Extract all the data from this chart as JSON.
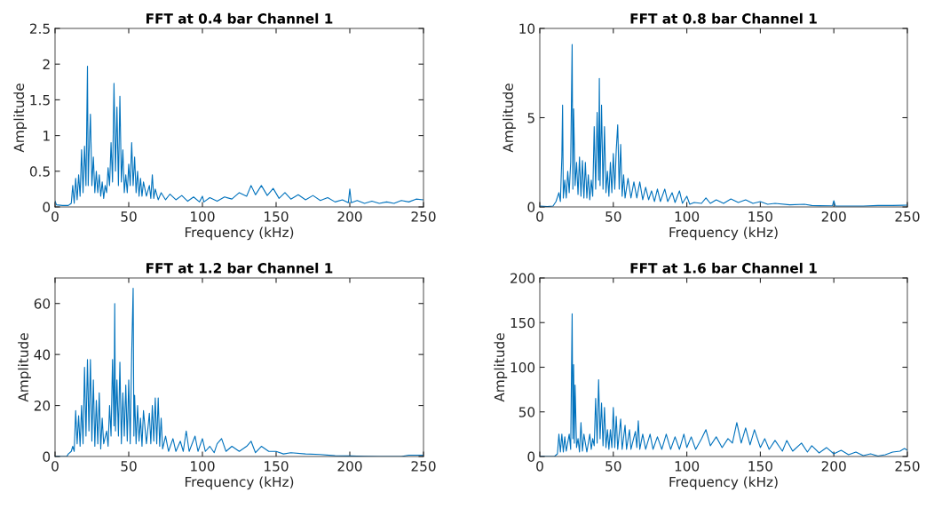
{
  "chart_data": [
    {
      "type": "line",
      "title": "FFT at 0.4 bar Channel 1",
      "xlabel": "Frequency (kHz)",
      "ylabel": "Amplitude",
      "xlim": [
        0,
        250
      ],
      "xticks": [
        0,
        50,
        100,
        150,
        200,
        250
      ],
      "ylim": [
        0,
        2.5
      ],
      "yticks": [
        0,
        0.5,
        1,
        1.5,
        2,
        2.5
      ],
      "x": [
        0,
        1,
        5,
        9,
        11,
        12,
        13,
        14,
        15,
        16,
        17,
        18,
        19,
        20,
        21,
        22,
        22.5,
        23,
        24,
        25,
        26,
        27,
        28,
        29,
        30,
        31,
        32,
        33,
        34,
        35,
        36,
        37,
        38,
        39,
        40,
        41,
        42,
        43,
        44,
        45,
        46,
        47,
        48,
        49,
        50,
        51,
        52,
        53,
        54,
        55,
        56,
        57,
        58,
        59,
        60,
        62,
        64,
        65,
        66,
        67,
        68,
        70,
        72,
        75,
        78,
        82,
        86,
        90,
        94,
        98,
        100,
        101,
        105,
        110,
        115,
        120,
        125,
        130,
        133,
        136,
        140,
        144,
        148,
        152,
        156,
        160,
        165,
        170,
        175,
        180,
        185,
        190,
        195,
        199,
        200,
        201,
        205,
        210,
        215,
        220,
        225,
        230,
        235,
        240,
        245,
        250
      ],
      "series": [
        {
          "color": "#0072bd",
          "values": [
            0.08,
            0.03,
            0.02,
            0.02,
            0.05,
            0.3,
            0.05,
            0.4,
            0.1,
            0.45,
            0.15,
            0.8,
            0.2,
            0.85,
            0.3,
            1.97,
            0.3,
            0.7,
            1.3,
            0.3,
            0.7,
            0.2,
            0.5,
            0.2,
            0.45,
            0.15,
            0.35,
            0.12,
            0.3,
            0.2,
            0.55,
            0.3,
            0.9,
            0.35,
            1.73,
            0.5,
            1.4,
            0.3,
            1.55,
            0.35,
            0.8,
            0.2,
            0.45,
            0.2,
            0.6,
            0.3,
            0.9,
            0.3,
            0.7,
            0.2,
            0.5,
            0.15,
            0.4,
            0.15,
            0.35,
            0.15,
            0.3,
            0.12,
            0.45,
            0.12,
            0.25,
            0.1,
            0.2,
            0.1,
            0.18,
            0.1,
            0.16,
            0.08,
            0.14,
            0.07,
            0.15,
            0.07,
            0.13,
            0.08,
            0.14,
            0.11,
            0.2,
            0.15,
            0.3,
            0.17,
            0.3,
            0.16,
            0.26,
            0.12,
            0.2,
            0.11,
            0.17,
            0.1,
            0.16,
            0.09,
            0.13,
            0.07,
            0.1,
            0.06,
            0.25,
            0.06,
            0.09,
            0.05,
            0.08,
            0.05,
            0.07,
            0.05,
            0.09,
            0.07,
            0.11,
            0.1
          ]
        }
      ]
    },
    {
      "type": "line",
      "title": "FFT at 0.8 bar Channel 1",
      "xlabel": "Frequency (kHz)",
      "ylabel": "Amplitude",
      "xlim": [
        0,
        250
      ],
      "xticks": [
        0,
        50,
        100,
        150,
        200,
        250
      ],
      "ylim": [
        0,
        10
      ],
      "yticks": [
        0,
        5,
        10
      ],
      "x": [
        0,
        5,
        9,
        11,
        13,
        14,
        15,
        15.5,
        16,
        17,
        18,
        19,
        20,
        21,
        22,
        22.5,
        23,
        24,
        25,
        26,
        27,
        28,
        29,
        30,
        31,
        32,
        33,
        34,
        35,
        36,
        37,
        38,
        39,
        40,
        40.5,
        41,
        42,
        43,
        44,
        45,
        46,
        47,
        48,
        49,
        50,
        51,
        52,
        53,
        54,
        55,
        56,
        57,
        58,
        60,
        62,
        64,
        66,
        68,
        70,
        72,
        74,
        76,
        78,
        80,
        82,
        85,
        87,
        90,
        92,
        95,
        97,
        100,
        102,
        105,
        110,
        113,
        116,
        120,
        125,
        130,
        135,
        140,
        145,
        150,
        155,
        160,
        170,
        180,
        185,
        190,
        199,
        200,
        201,
        210,
        220,
        230,
        240,
        250
      ],
      "series": [
        {
          "color": "#0072bd",
          "values": [
            0.05,
            0.02,
            0.05,
            0.3,
            0.8,
            0.3,
            2.8,
            5.7,
            0.5,
            1.5,
            0.5,
            2.0,
            0.8,
            2.5,
            9.1,
            1.0,
            5.5,
            1.2,
            2.5,
            0.7,
            2.8,
            0.6,
            2.6,
            0.5,
            2.5,
            0.5,
            1.8,
            0.4,
            1.5,
            0.6,
            4.5,
            1.0,
            5.3,
            1.5,
            7.2,
            1.2,
            5.7,
            1.0,
            4.5,
            0.8,
            2.0,
            0.6,
            2.5,
            0.8,
            3.0,
            1.0,
            3.2,
            4.6,
            1.0,
            3.5,
            0.6,
            1.8,
            0.5,
            1.6,
            0.5,
            1.4,
            0.5,
            1.4,
            0.4,
            1.1,
            0.4,
            0.9,
            0.3,
            1.0,
            0.3,
            1.0,
            0.3,
            0.8,
            0.25,
            0.9,
            0.2,
            0.6,
            0.15,
            0.25,
            0.2,
            0.5,
            0.2,
            0.4,
            0.2,
            0.45,
            0.25,
            0.4,
            0.2,
            0.3,
            0.15,
            0.2,
            0.12,
            0.15,
            0.08,
            0.07,
            0.06,
            0.35,
            0.05,
            0.05,
            0.05,
            0.08,
            0.08,
            0.1
          ]
        }
      ]
    },
    {
      "type": "line",
      "title": "FFT at 1.2 bar Channel 1",
      "xlabel": "Frequency (kHz)",
      "ylabel": "Amplitude",
      "xlim": [
        0,
        250
      ],
      "xticks": [
        0,
        50,
        100,
        150,
        200,
        250
      ],
      "ylim": [
        0,
        70
      ],
      "yticks": [
        0,
        20,
        40,
        60
      ],
      "x": [
        0,
        8,
        9,
        11,
        12,
        13,
        14,
        15,
        16,
        17,
        18,
        19,
        20,
        21,
        22,
        23,
        24,
        25,
        26,
        27,
        28,
        29,
        30,
        31,
        32,
        33,
        35,
        36,
        37,
        38,
        39,
        40,
        40.5,
        41,
        42,
        43,
        44,
        45,
        46,
        47,
        48,
        49,
        50,
        51,
        52,
        53,
        53.5,
        54,
        55,
        56,
        57,
        58,
        59,
        60,
        62,
        64,
        65,
        66,
        67,
        68,
        69,
        70,
        71,
        72,
        73,
        75,
        77,
        80,
        82,
        85,
        87,
        89,
        91,
        95,
        97,
        100,
        102,
        105,
        108,
        110,
        113,
        116,
        120,
        125,
        130,
        133,
        136,
        140,
        145,
        150,
        155,
        160,
        170,
        180,
        190,
        200,
        210,
        220,
        235,
        240,
        250
      ],
      "series": [
        {
          "color": "#0072bd",
          "values": [
            0,
            0,
            1,
            2,
            4,
            2,
            18,
            5,
            16,
            4,
            20,
            5,
            35,
            8,
            38,
            10,
            38,
            6,
            30,
            4,
            22,
            5,
            25,
            3,
            15,
            5,
            10,
            4,
            20,
            8,
            38,
            12,
            60,
            10,
            30,
            8,
            37,
            5,
            25,
            8,
            28,
            6,
            30,
            5,
            40,
            66,
            8,
            24,
            5,
            20,
            6,
            15,
            4,
            18,
            5,
            17,
            5,
            20,
            6,
            23,
            5,
            23,
            4,
            15,
            3,
            8,
            2,
            7,
            2,
            6,
            2,
            10,
            2,
            8,
            2,
            7,
            2,
            4,
            1.5,
            5,
            7,
            2,
            4,
            2,
            4,
            6,
            1.5,
            4,
            2,
            2,
            1,
            1.5,
            1,
            0.8,
            0.3,
            0.2,
            0.1,
            0,
            0,
            0.5,
            0.5
          ]
        }
      ]
    },
    {
      "type": "line",
      "title": "FFT at 1.6 bar Channel 1",
      "xlabel": "Frequency (kHz)",
      "ylabel": "Amplitude",
      "xlim": [
        0,
        250
      ],
      "xticks": [
        0,
        50,
        100,
        150,
        200,
        250
      ],
      "ylim": [
        0,
        200
      ],
      "yticks": [
        0,
        50,
        100,
        150,
        200
      ],
      "x": [
        0,
        10,
        12,
        13,
        14,
        15,
        16,
        17,
        18,
        20,
        21,
        22,
        22.5,
        23,
        23.5,
        24,
        25,
        26,
        27,
        28,
        29,
        30,
        32,
        34,
        35,
        36,
        37,
        38,
        39,
        40,
        41,
        42,
        43,
        44,
        45,
        46,
        47,
        48,
        49,
        50,
        51,
        52,
        53,
        55,
        56,
        58,
        59,
        61,
        62,
        65,
        66,
        67,
        68,
        70,
        72,
        75,
        77,
        80,
        83,
        86,
        89,
        92,
        95,
        98,
        100,
        103,
        106,
        110,
        113,
        116,
        120,
        124,
        128,
        131,
        134,
        137,
        140,
        143,
        146,
        150,
        153,
        156,
        160,
        165,
        168,
        172,
        178,
        182,
        185,
        190,
        195,
        200,
        205,
        210,
        215,
        220,
        225,
        230,
        235,
        240,
        245,
        248,
        250
      ],
      "series": [
        {
          "color": "#0072bd",
          "values": [
            0,
            0,
            3,
            25,
            5,
            25,
            5,
            22,
            6,
            25,
            8,
            160,
            20,
            103,
            15,
            80,
            10,
            20,
            5,
            38,
            6,
            25,
            5,
            25,
            8,
            20,
            12,
            65,
            15,
            86,
            20,
            60,
            12,
            55,
            10,
            30,
            8,
            30,
            10,
            55,
            10,
            45,
            8,
            42,
            8,
            35,
            8,
            30,
            8,
            28,
            10,
            40,
            8,
            25,
            8,
            25,
            8,
            22,
            8,
            25,
            8,
            22,
            8,
            25,
            10,
            22,
            8,
            20,
            30,
            12,
            22,
            10,
            20,
            15,
            38,
            15,
            32,
            13,
            30,
            10,
            20,
            8,
            18,
            6,
            18,
            6,
            15,
            5,
            12,
            4,
            10,
            3,
            7,
            2,
            5,
            1,
            3,
            0.5,
            2,
            5,
            6,
            9,
            7
          ]
        }
      ]
    }
  ]
}
